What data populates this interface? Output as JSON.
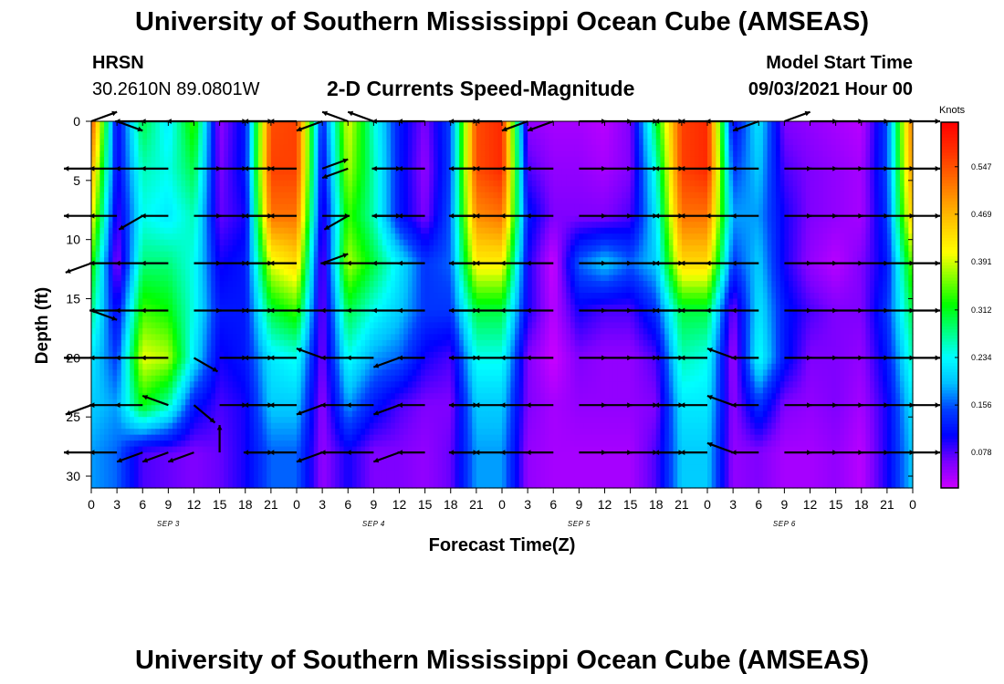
{
  "header": {
    "title_top": "University of Southern Mississippi Ocean Cube (AMSEAS)",
    "title_bottom": "University of Southern Mississippi Ocean Cube (AMSEAS)",
    "station": "HRSN",
    "coords": "30.2610N  89.0801W",
    "product": "2-D Currents Speed-Magnitude",
    "model_label": "Model Start Time",
    "model_time": "09/03/2021 Hour 00"
  },
  "chart_data": {
    "type": "heatmap",
    "title": "2-D Currents Speed-Magnitude",
    "xlabel": "Forecast Time(Z)",
    "ylabel": "Depth (ft)",
    "colorbar_label": "Knots",
    "x_ticks": [
      "0",
      "3",
      "6",
      "9",
      "12",
      "15",
      "18",
      "21",
      "0",
      "3",
      "6",
      "9",
      "12",
      "15",
      "18",
      "21",
      "0",
      "3",
      "6",
      "9",
      "12",
      "15",
      "18",
      "21",
      "0",
      "3",
      "6",
      "9",
      "12",
      "15",
      "18",
      "21",
      "0"
    ],
    "date_labels": [
      {
        "label": "SEP 3",
        "hour": 9
      },
      {
        "label": "SEP 4",
        "hour": 33
      },
      {
        "label": "SEP 5",
        "hour": 57
      },
      {
        "label": "SEP 6",
        "hour": 81
      }
    ],
    "xlim": [
      0,
      96
    ],
    "y_ticks": [
      0,
      5,
      10,
      15,
      20,
      25,
      30
    ],
    "ylim": [
      0,
      31
    ],
    "colorbar_ticks": [
      0.078,
      0.156,
      0.234,
      0.312,
      0.391,
      0.469,
      0.547
    ],
    "colorbar_range": [
      0.02,
      0.62
    ],
    "colorbar_colors": [
      "#cc00ff",
      "#7a00ff",
      "#0000ff",
      "#0040ff",
      "#00c0ff",
      "#00ffff",
      "#00ff80",
      "#00ff00",
      "#80ff00",
      "#ffff00",
      "#ffd000",
      "#ff9900",
      "#ff6000",
      "#ff2a00",
      "#ff0000"
    ],
    "hours": [
      0,
      3,
      6,
      9,
      12,
      15,
      18,
      21,
      24,
      27,
      30,
      33,
      36,
      39,
      42,
      45,
      48,
      51,
      54,
      57,
      60,
      63,
      66,
      69,
      72,
      75,
      78,
      81,
      84,
      87,
      90,
      93,
      96
    ],
    "depths": [
      0,
      4,
      8,
      12,
      16,
      20,
      24,
      28
    ],
    "speed_grid": [
      [
        0.55,
        0.1,
        0.3,
        0.22,
        0.34,
        0.05,
        0.12,
        0.55,
        0.56,
        0.12,
        0.4,
        0.25,
        0.12,
        0.06,
        0.15,
        0.55,
        0.58,
        0.05,
        0.04,
        0.04,
        0.03,
        0.06,
        0.3,
        0.56,
        0.58,
        0.1,
        0.22,
        0.06,
        0.05,
        0.04,
        0.03,
        0.15,
        0.52
      ],
      [
        0.48,
        0.1,
        0.26,
        0.24,
        0.3,
        0.06,
        0.12,
        0.56,
        0.56,
        0.1,
        0.38,
        0.26,
        0.12,
        0.05,
        0.15,
        0.55,
        0.58,
        0.08,
        0.05,
        0.05,
        0.04,
        0.06,
        0.25,
        0.56,
        0.58,
        0.14,
        0.2,
        0.08,
        0.06,
        0.05,
        0.04,
        0.15,
        0.5
      ],
      [
        0.42,
        0.08,
        0.24,
        0.22,
        0.26,
        0.07,
        0.1,
        0.52,
        0.52,
        0.08,
        0.34,
        0.26,
        0.12,
        0.06,
        0.16,
        0.5,
        0.52,
        0.12,
        0.06,
        0.06,
        0.06,
        0.08,
        0.22,
        0.52,
        0.52,
        0.18,
        0.18,
        0.1,
        0.06,
        0.05,
        0.04,
        0.14,
        0.46
      ],
      [
        0.34,
        0.05,
        0.28,
        0.28,
        0.24,
        0.1,
        0.12,
        0.4,
        0.44,
        0.06,
        0.38,
        0.3,
        0.22,
        0.14,
        0.16,
        0.42,
        0.42,
        0.1,
        0.02,
        0.16,
        0.2,
        0.16,
        0.2,
        0.44,
        0.44,
        0.14,
        0.2,
        0.1,
        0.05,
        0.03,
        0.06,
        0.12,
        0.36
      ],
      [
        0.28,
        0.1,
        0.34,
        0.32,
        0.24,
        0.12,
        0.12,
        0.3,
        0.34,
        0.06,
        0.3,
        0.24,
        0.2,
        0.14,
        0.14,
        0.3,
        0.3,
        0.1,
        0.03,
        0.1,
        0.08,
        0.08,
        0.14,
        0.3,
        0.3,
        0.06,
        0.22,
        0.12,
        0.08,
        0.06,
        0.06,
        0.14,
        0.3
      ],
      [
        0.22,
        0.14,
        0.4,
        0.38,
        0.22,
        0.1,
        0.12,
        0.22,
        0.24,
        0.06,
        0.24,
        0.18,
        0.16,
        0.1,
        0.08,
        0.24,
        0.24,
        0.06,
        0.02,
        0.06,
        0.05,
        0.05,
        0.08,
        0.26,
        0.24,
        0.04,
        0.24,
        0.12,
        0.06,
        0.06,
        0.05,
        0.12,
        0.26
      ],
      [
        0.2,
        0.18,
        0.32,
        0.26,
        0.12,
        0.08,
        0.1,
        0.2,
        0.2,
        0.05,
        0.18,
        0.12,
        0.08,
        0.06,
        0.06,
        0.2,
        0.2,
        0.06,
        0.04,
        0.05,
        0.05,
        0.05,
        0.06,
        0.22,
        0.22,
        0.05,
        0.14,
        0.06,
        0.05,
        0.06,
        0.04,
        0.1,
        0.22
      ],
      [
        0.18,
        0.16,
        0.08,
        0.07,
        0.06,
        0.07,
        0.1,
        0.16,
        0.16,
        0.05,
        0.1,
        0.06,
        0.06,
        0.05,
        0.07,
        0.18,
        0.18,
        0.05,
        0.04,
        0.04,
        0.04,
        0.04,
        0.08,
        0.2,
        0.2,
        0.05,
        0.06,
        0.04,
        0.04,
        0.05,
        0.03,
        0.1,
        0.2
      ]
    ],
    "vector_angles_deg": [
      [
        20,
        -20,
        180,
        180,
        180,
        0,
        0,
        180,
        180,
        200,
        160,
        160,
        180,
        180,
        0,
        180,
        180,
        200,
        200,
        0,
        0,
        0,
        0,
        180,
        180,
        180,
        200,
        20,
        0,
        0,
        0,
        0,
        0
      ],
      [
        180,
        180,
        180,
        180,
        0,
        0,
        0,
        180,
        180,
        20,
        200,
        0,
        180,
        180,
        0,
        180,
        180,
        180,
        180,
        0,
        0,
        0,
        0,
        180,
        180,
        180,
        180,
        0,
        0,
        0,
        0,
        0,
        0
      ],
      [
        180,
        180,
        210,
        180,
        0,
        0,
        0,
        180,
        180,
        0,
        210,
        0,
        180,
        180,
        0,
        180,
        180,
        180,
        180,
        0,
        0,
        0,
        0,
        180,
        180,
        180,
        180,
        0,
        0,
        0,
        0,
        0,
        0
      ],
      [
        200,
        180,
        180,
        180,
        0,
        0,
        0,
        180,
        180,
        20,
        180,
        180,
        180,
        180,
        0,
        180,
        180,
        180,
        180,
        0,
        0,
        0,
        0,
        180,
        180,
        180,
        180,
        0,
        0,
        0,
        0,
        0,
        0
      ],
      [
        340,
        180,
        180,
        180,
        0,
        0,
        0,
        180,
        180,
        180,
        180,
        180,
        180,
        180,
        0,
        180,
        180,
        180,
        180,
        0,
        0,
        0,
        0,
        180,
        180,
        180,
        180,
        0,
        0,
        0,
        0,
        0,
        0
      ],
      [
        180,
        180,
        180,
        180,
        330,
        0,
        0,
        180,
        180,
        160,
        180,
        180,
        200,
        180,
        0,
        180,
        180,
        180,
        180,
        0,
        0,
        0,
        0,
        180,
        180,
        160,
        180,
        0,
        0,
        0,
        0,
        0,
        0
      ],
      [
        200,
        180,
        180,
        160,
        320,
        0,
        0,
        180,
        180,
        200,
        180,
        180,
        200,
        180,
        0,
        180,
        180,
        180,
        180,
        0,
        0,
        0,
        0,
        180,
        180,
        160,
        180,
        0,
        0,
        0,
        0,
        0,
        0
      ],
      [
        180,
        180,
        200,
        200,
        200,
        90,
        0,
        180,
        180,
        200,
        180,
        180,
        200,
        180,
        0,
        180,
        180,
        180,
        180,
        0,
        0,
        0,
        0,
        180,
        180,
        160,
        180,
        0,
        0,
        0,
        0,
        0,
        0
      ]
    ]
  }
}
